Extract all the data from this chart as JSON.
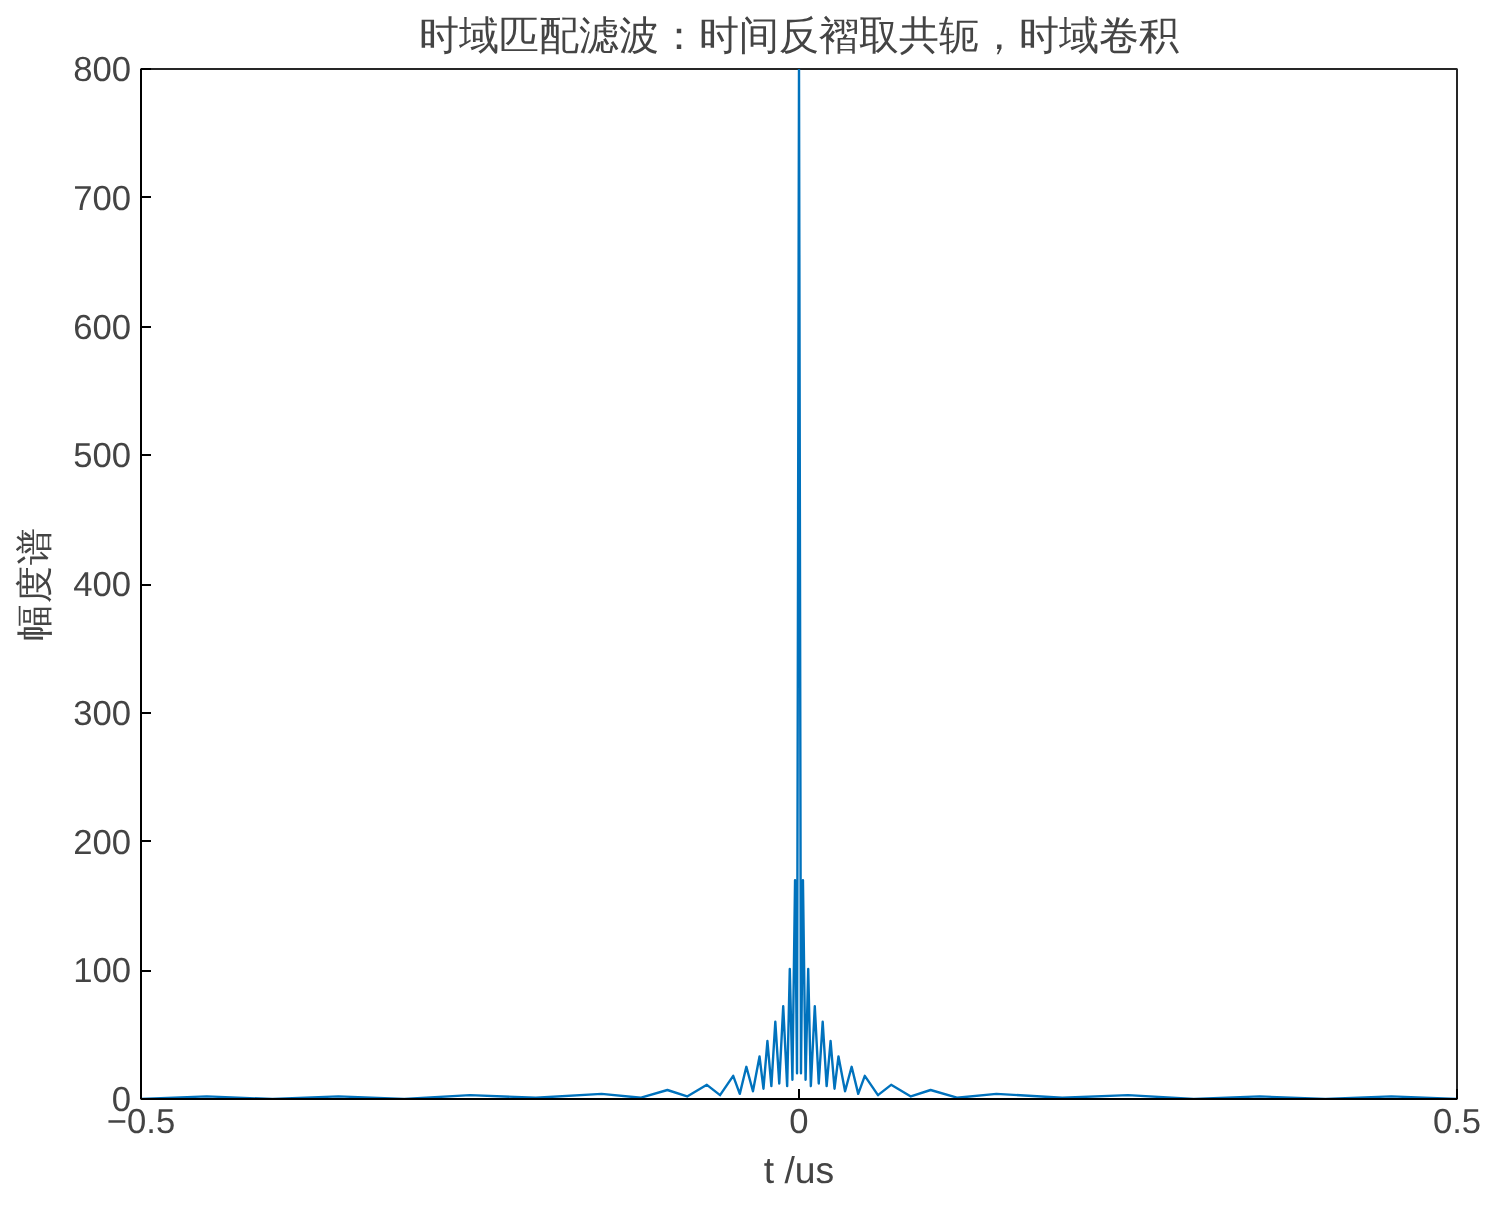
{
  "chart_data": {
    "type": "line",
    "title": "时域匹配滤波：时间反褶取共轭，时域卷积",
    "xlabel": "t /us",
    "ylabel": "幅度谱",
    "x": [
      -0.5,
      -0.45,
      -0.4,
      -0.35,
      -0.3,
      -0.25,
      -0.2,
      -0.15,
      -0.12,
      -0.1,
      -0.085,
      -0.07,
      -0.06,
      -0.05,
      -0.045,
      -0.04,
      -0.035,
      -0.03,
      -0.027,
      -0.024,
      -0.021,
      -0.018,
      -0.015,
      -0.012,
      -0.009,
      -0.007,
      -0.005,
      -0.003,
      -0.0015,
      0,
      0.0015,
      0.003,
      0.005,
      0.007,
      0.009,
      0.012,
      0.015,
      0.018,
      0.021,
      0.024,
      0.027,
      0.03,
      0.035,
      0.04,
      0.045,
      0.05,
      0.06,
      0.07,
      0.085,
      0.1,
      0.12,
      0.15,
      0.2,
      0.25,
      0.3,
      0.35,
      0.4,
      0.45,
      0.5
    ],
    "series": [
      {
        "color": "#0072bd",
        "values": [
          0,
          2,
          0,
          2,
          0,
          3,
          1,
          4,
          1,
          7,
          2,
          11,
          3,
          18,
          4,
          25,
          6,
          33,
          8,
          45,
          10,
          60,
          12,
          72,
          10,
          101,
          15,
          170,
          20,
          800,
          20,
          170,
          15,
          101,
          10,
          72,
          12,
          60,
          10,
          45,
          8,
          33,
          6,
          25,
          4,
          18,
          3,
          11,
          2,
          7,
          1,
          4,
          1,
          3,
          0,
          2,
          0,
          2,
          0
        ]
      }
    ],
    "xlim": [
      -0.5,
      0.5
    ],
    "xticks": [
      -0.5,
      0,
      0.5
    ],
    "ylim": [
      0,
      800
    ],
    "yticks": [
      0,
      100,
      200,
      300,
      400,
      500,
      600,
      700,
      800
    ],
    "grid": false,
    "line_style": "solid",
    "marker": "none"
  }
}
